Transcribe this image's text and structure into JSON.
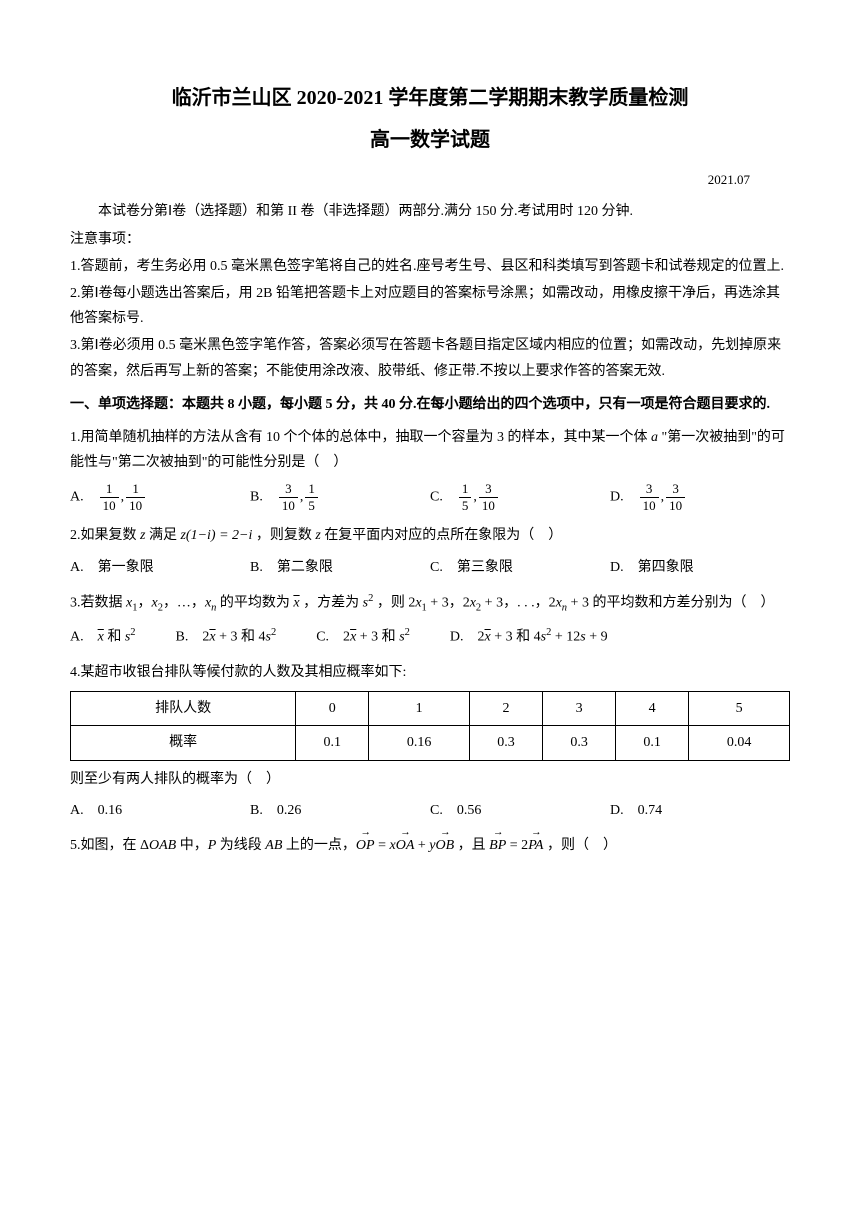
{
  "title_main": "临沂市兰山区 2020-2021 学年度第二学期期末教学质量检测",
  "title_sub": "高一数学试题",
  "date": "2021.07",
  "intro": "本试卷分第Ⅰ卷（选择题）和第 II 卷（非选择题）两部分.满分 150 分.考试用时 120 分钟.",
  "notice_label": "注意事项：",
  "notice_1": "1.答题前，考生务必用 0.5 毫米黑色签字笔将自己的姓名.座号考生号、县区和科类填写到答题卡和试卷规定的位置上.",
  "notice_2": "2.第Ⅰ卷每小题选出答案后，用 2B 铅笔把答题卡上对应题目的答案标号涂黑；如需改动，用橡皮擦干净后，再选涂其他答案标号.",
  "notice_3": "3.第Ⅰ卷必须用 0.5 毫米黑色签字笔作答，答案必须写在答题卡各题目指定区域内相应的位置；如需改动，先划掉原来的答案，然后再写上新的答案；不能使用涂改液、胶带纸、修正带.不按以上要求作答的答案无效.",
  "section1_header": "一、单项选择题：本题共 8 小题，每小题 5 分，共 40 分.在每小题给出的四个选项中，只有一项是符合题目要求的.",
  "q1": {
    "text_a": "1.用简单随机抽样的方法从含有 10 个个体的总体中，抽取一个容量为 3 的样本，其中某一个体 ",
    "text_i": "a",
    "text_b": " \"第一次被抽到\"的可能性与\"第二次被抽到\"的可能性分别是（　）",
    "optA_label": "A.　",
    "optA_f1n": "1",
    "optA_f1d": "10",
    "optA_sep": ",",
    "optA_f2n": "1",
    "optA_f2d": "10",
    "optB_label": "B.　",
    "optB_f1n": "3",
    "optB_f1d": "10",
    "optB_sep": ",",
    "optB_f2n": "1",
    "optB_f2d": "5",
    "optC_label": "C.　",
    "optC_f1n": "1",
    "optC_f1d": "5",
    "optC_sep": ",",
    "optC_f2n": "3",
    "optC_f2d": "10",
    "optD_label": "D.　",
    "optD_f1n": "3",
    "optD_f1d": "10",
    "optD_sep": ",",
    "optD_f2n": "3",
    "optD_f2d": "10"
  },
  "q2": {
    "text_a": "2.如果复数 ",
    "z": "z",
    "text_b": " 满足 ",
    "expr": "z(1−i) = 2−i",
    "text_c": " ，则复数 ",
    "text_d": " 在复平面内对应的点所在象限为（　）",
    "optA": "A.　第一象限",
    "optB": "B.　第二象限",
    "optC": "C.　第三象限",
    "optD": "D.　第四象限"
  },
  "q3": {
    "text_a": "3.若数据 ",
    "x1": "x",
    "sub1": "1",
    "sep": "，",
    "x2": "x",
    "sub2": "2",
    "dots": "，…，",
    "xn": "x",
    "subn": "n",
    "text_b": " 的平均数为 ",
    "xbar": "x",
    "text_c": " ，方差为 ",
    "s2_s": "s",
    "s2_e": "2",
    "text_d": " ，则 ",
    "e1_a": "2",
    "e1_b": "x",
    "e1_c": "1",
    "e1_d": " + 3",
    "text_e": "，",
    "e2_a": "2",
    "e2_b": "x",
    "e2_c": "2",
    "e2_d": " + 3",
    "text_f": "，. . .，",
    "en_a": "2",
    "en_b": "x",
    "en_c": "n",
    "en_d": " + 3",
    "text_g": " 的平均数和方差分别为（　）",
    "optA_a": "A.　",
    "optA_xbar": "x",
    "optA_b": " 和 ",
    "optA_s": "s",
    "optA_e": "2",
    "optB_a": "B.　2",
    "optB_xbar": "x",
    "optB_b": " + 3 和 4",
    "optB_s": "s",
    "optB_e": "2",
    "optC_a": "C.　2",
    "optC_xbar": "x",
    "optC_b": " + 3 和 ",
    "optC_s": "s",
    "optC_e": "2",
    "optD_a": "D.　2",
    "optD_xbar": "x",
    "optD_b": " + 3 和 4",
    "optD_s": "s",
    "optD_e": "2",
    "optD_c": " + 12",
    "optD_s2": "s",
    "optD_d": " + 9"
  },
  "q4": {
    "text": "4.某超市收银台排队等候付款的人数及其相应概率如下:",
    "table": {
      "row1_label": "排队人数",
      "row1": [
        "0",
        "1",
        "2",
        "3",
        "4",
        "5"
      ],
      "row2_label": "概率",
      "row2": [
        "0.1",
        "0.16",
        "0.3",
        "0.3",
        "0.1",
        "0.04"
      ]
    },
    "text2": "则至少有两人排队的概率为（　）",
    "optA": "A.　0.16",
    "optB": "B.　0.26",
    "optC": "C.　0.56",
    "optD": "D.　0.74"
  },
  "q5": {
    "text_a": "5.如图，在 Δ",
    "oab": "OAB",
    "text_b": " 中，",
    "p": "P",
    "text_c": " 为线段 ",
    "ab": "AB",
    "text_d": " 上的一点，",
    "vec_op": "OP",
    "eq1": " = ",
    "x": "x",
    "vec_oa": "OA",
    "plus": " + ",
    "y": "y",
    "vec_ob": "OB",
    "text_e": " ，且 ",
    "vec_bp": "BP",
    "eq2": " = 2",
    "vec_pa": "PA",
    "text_f": " ，则（　）"
  }
}
